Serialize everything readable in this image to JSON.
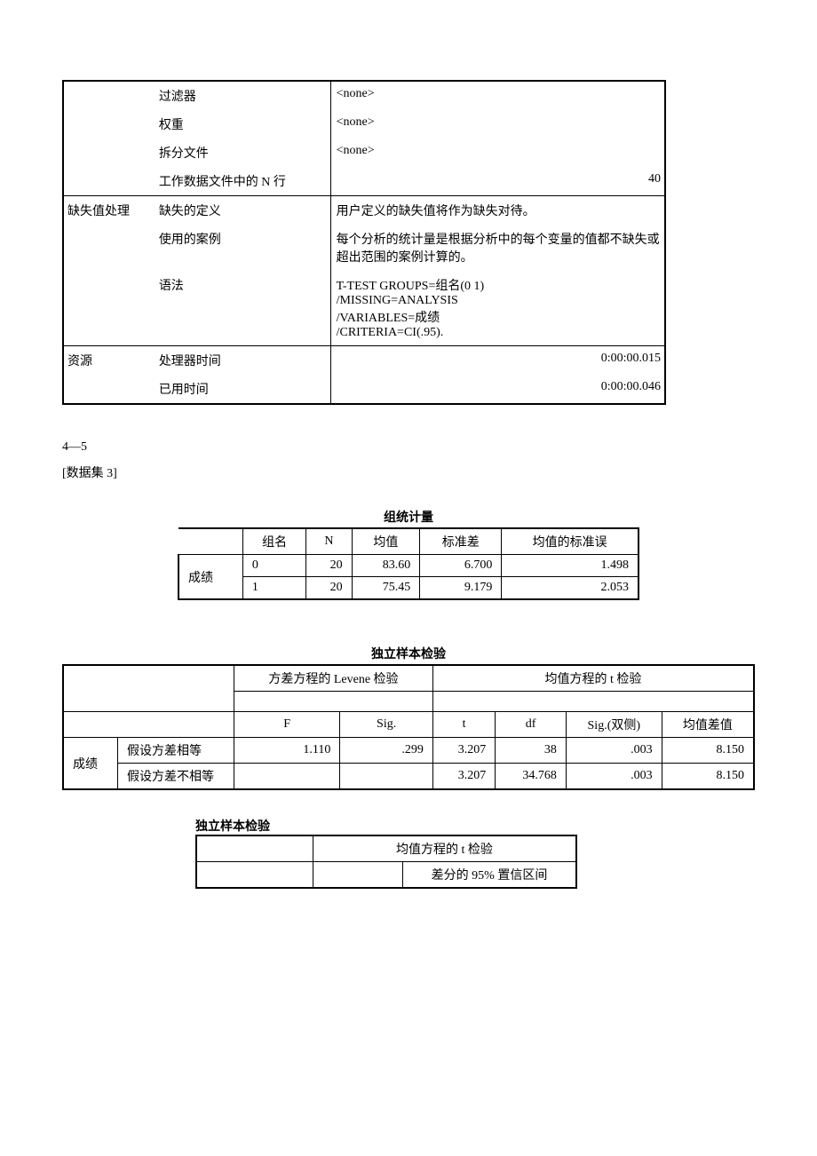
{
  "info": {
    "rows": [
      {
        "c1": "",
        "c2": "过滤器",
        "c3": "<none>",
        "align": "left",
        "sep": false
      },
      {
        "c1": "",
        "c2": "权重",
        "c3": "<none>",
        "align": "left",
        "sep": false
      },
      {
        "c1": "",
        "c2": "拆分文件",
        "c3": "<none>",
        "align": "left",
        "sep": false
      },
      {
        "c1": "",
        "c2": "工作数据文件中的 N 行",
        "c3": "40",
        "align": "right",
        "sep": false
      },
      {
        "c1": "缺失值处理",
        "c2": "缺失的定义",
        "c3": "用户定义的缺失值将作为缺失对待。",
        "align": "left",
        "sep": true
      },
      {
        "c1": "",
        "c2": "使用的案例",
        "c3": "每个分析的统计量是根据分析中的每个变量的值都不缺失或超出范围的案例计算的。",
        "align": "left",
        "sep": false
      },
      {
        "c1": "",
        "c2": "语法",
        "c3": "T-TEST GROUPS=组名(0 1)\n  /MISSING=ANALYSIS\n  /VARIABLES=成绩\n  /CRITERIA=CI(.95).\n ",
        "align": "left",
        "sep": false
      },
      {
        "c1": "资源",
        "c2": "处理器时间",
        "c3": "0:00:00.015",
        "align": "right",
        "sep": true
      },
      {
        "c1": "",
        "c2": "已用时间",
        "c3": "0:00:00.046",
        "align": "right",
        "sep": false
      }
    ]
  },
  "section": {
    "line1": "4—5",
    "line2": "[数据集 3]"
  },
  "groupStats": {
    "title": "组统计量",
    "headers": [
      "组名",
      "N",
      "均值",
      "标准差",
      "均值的标准误"
    ],
    "rowLabel": "成绩",
    "rows": [
      {
        "g": "0",
        "n": "20",
        "mean": "83.60",
        "sd": "6.700",
        "se": "1.498"
      },
      {
        "g": "1",
        "n": "20",
        "mean": "75.45",
        "sd": "9.179",
        "se": "2.053"
      }
    ]
  },
  "indep1": {
    "title": "独立样本检验",
    "hLevene": "方差方程的 Levene 检验",
    "hT": "均值方程的 t 检验",
    "sub": [
      "F",
      "Sig.",
      "t",
      "df",
      "Sig.(双侧)",
      "均值差值"
    ],
    "rowLabel": "成绩",
    "rows": [
      {
        "assume": "假设方差相等",
        "F": "1.110",
        "Sig": ".299",
        "t": "3.207",
        "df": "38",
        "sig2": ".003",
        "md": "8.150"
      },
      {
        "assume": "假设方差不相等",
        "F": "",
        "Sig": "",
        "t": "3.207",
        "df": "34.768",
        "sig2": ".003",
        "md": "8.150"
      }
    ]
  },
  "indep2": {
    "title": "独立样本检验",
    "h1": "均值方程的 t 检验",
    "h2": "差分的 95% 置信区间"
  }
}
